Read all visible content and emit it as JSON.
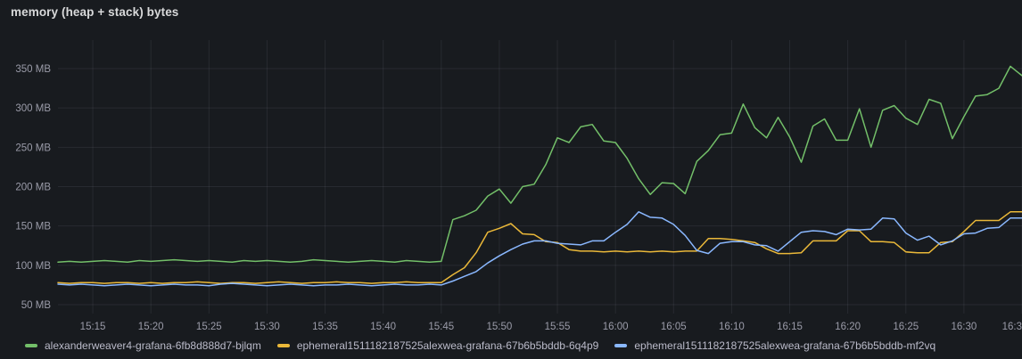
{
  "panel": {
    "title": "memory (heap + stack) bytes"
  },
  "colors": {
    "background": "#181b1f",
    "text_primary": "#d8d9da",
    "text_axis": "rgba(204,204,220,0.72)",
    "grid": "rgba(204,204,220,0.09)",
    "series_green": "#73bf69",
    "series_yellow": "#eab839",
    "series_blue": "#8ab8ff"
  },
  "chart_data": {
    "type": "line",
    "title": "memory (heap + stack) bytes",
    "unit": "MB",
    "grid": true,
    "legend_position": "bottom",
    "x_start": "15:12",
    "x_step_minutes": 1,
    "xlim_minutes": [
      0,
      83
    ],
    "ylim": [
      45,
      380
    ],
    "y_ticks": [
      {
        "value": 50,
        "label": "50 MB"
      },
      {
        "value": 100,
        "label": "100 MB"
      },
      {
        "value": 150,
        "label": "150 MB"
      },
      {
        "value": 200,
        "label": "200 MB"
      },
      {
        "value": 250,
        "label": "250 MB"
      },
      {
        "value": 300,
        "label": "300 MB"
      },
      {
        "value": 350,
        "label": "350 MB"
      }
    ],
    "x_ticks": [
      {
        "t": 3,
        "label": "15:15"
      },
      {
        "t": 8,
        "label": "15:20"
      },
      {
        "t": 13,
        "label": "15:25"
      },
      {
        "t": 18,
        "label": "15:30"
      },
      {
        "t": 23,
        "label": "15:35"
      },
      {
        "t": 28,
        "label": "15:40"
      },
      {
        "t": 33,
        "label": "15:45"
      },
      {
        "t": 38,
        "label": "15:50"
      },
      {
        "t": 43,
        "label": "15:55"
      },
      {
        "t": 48,
        "label": "16:00"
      },
      {
        "t": 53,
        "label": "16:05"
      },
      {
        "t": 58,
        "label": "16:10"
      },
      {
        "t": 63,
        "label": "16:15"
      },
      {
        "t": 68,
        "label": "16:20"
      },
      {
        "t": 73,
        "label": "16:25"
      },
      {
        "t": 78,
        "label": "16:30"
      },
      {
        "t": 83,
        "label": "16:3"
      }
    ],
    "series": [
      {
        "name": "alexanderweaver4-grafana-6fb8d888d7-bjlqm",
        "color": "#73bf69",
        "values": [
          104,
          105,
          104,
          105,
          106,
          105,
          104,
          106,
          105,
          106,
          107,
          106,
          105,
          106,
          105,
          104,
          106,
          105,
          106,
          105,
          104,
          105,
          107,
          106,
          105,
          104,
          105,
          106,
          105,
          104,
          106,
          105,
          104,
          105,
          158,
          163,
          170,
          188,
          197,
          179,
          200,
          203,
          228,
          262,
          256,
          276,
          279,
          258,
          256,
          236,
          210,
          190,
          205,
          204,
          191,
          232,
          246,
          266,
          268,
          305,
          275,
          262,
          288,
          263,
          231,
          277,
          286,
          259,
          259,
          299,
          250,
          297,
          303,
          287,
          279,
          311,
          306,
          261,
          289,
          315,
          317,
          325,
          353,
          341
        ]
      },
      {
        "name": "ephemeral1511182187525alexwea-grafana-67b6b5bddb-6q4p9",
        "color": "#eab839",
        "values": [
          78,
          77,
          78,
          78,
          77,
          78,
          78,
          77,
          78,
          77,
          78,
          78,
          79,
          78,
          77,
          78,
          78,
          77,
          78,
          79,
          78,
          77,
          78,
          78,
          79,
          78,
          78,
          77,
          78,
          78,
          79,
          78,
          78,
          78,
          88,
          97,
          116,
          142,
          147,
          153,
          140,
          139,
          130,
          129,
          120,
          118,
          118,
          117,
          118,
          117,
          118,
          117,
          118,
          117,
          118,
          118,
          134,
          134,
          133,
          131,
          129,
          121,
          115,
          115,
          116,
          131,
          131,
          131,
          144,
          144,
          130,
          130,
          129,
          117,
          116,
          116,
          129,
          130,
          143,
          157,
          157,
          157,
          168,
          168
        ]
      },
      {
        "name": "ephemeral1511182187525alexwea-grafana-67b6b5bddb-mf2vq",
        "color": "#8ab8ff",
        "values": [
          76,
          75,
          76,
          75,
          74,
          75,
          76,
          75,
          74,
          75,
          76,
          75,
          75,
          74,
          76,
          77,
          76,
          75,
          74,
          75,
          76,
          75,
          74,
          75,
          75,
          76,
          75,
          74,
          75,
          76,
          75,
          75,
          76,
          75,
          80,
          86,
          92,
          103,
          112,
          120,
          127,
          131,
          131,
          128,
          127,
          126,
          131,
          131,
          142,
          152,
          168,
          161,
          160,
          152,
          138,
          119,
          115,
          128,
          130,
          130,
          126,
          125,
          118,
          130,
          142,
          144,
          143,
          139,
          146,
          145,
          146,
          160,
          159,
          141,
          132,
          137,
          126,
          131,
          140,
          141,
          147,
          148,
          160,
          160
        ]
      }
    ]
  }
}
